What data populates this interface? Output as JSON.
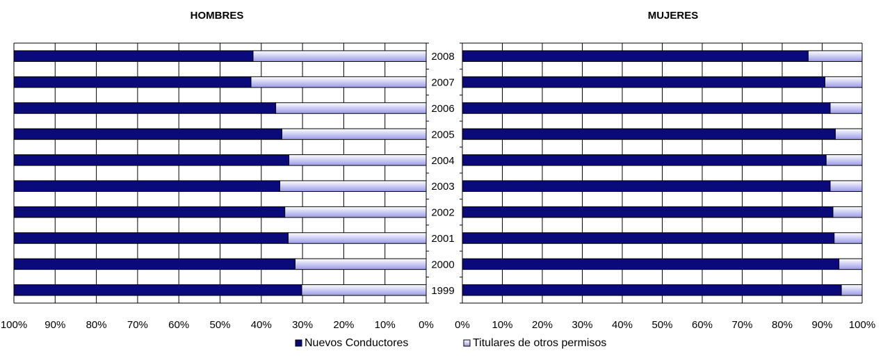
{
  "legend": {
    "series_a": "Nuevos Conductores",
    "series_b": "Titulares de otros permisos"
  },
  "colors": {
    "series_a": "#0a0a7a",
    "series_b_light": "#ffffff",
    "series_b_dark": "#9a9ae8",
    "grid": "#000000"
  },
  "chart_data": [
    {
      "type": "bar",
      "orientation": "horizontal",
      "stacked": "percent",
      "title": "HOMBRES",
      "direction": "reversed",
      "categories": [
        "2008",
        "2007",
        "2006",
        "2005",
        "2004",
        "2003",
        "2002",
        "2001",
        "2000",
        "1999"
      ],
      "series": [
        {
          "name": "Titulares de otros permisos",
          "values": [
            42,
            42.5,
            36.5,
            35,
            33.3,
            35.5,
            34.3,
            33.5,
            31.8,
            30.2
          ]
        },
        {
          "name": "Nuevos Conductores",
          "values": [
            58,
            57.5,
            63.5,
            65,
            66.7,
            64.5,
            65.7,
            66.5,
            68.2,
            69.8
          ]
        }
      ],
      "xlim": [
        0,
        100
      ],
      "xticks": [
        "0%",
        "10%",
        "20%",
        "30%",
        "40%",
        "50%",
        "60%",
        "70%",
        "80%",
        "90%",
        "100%"
      ],
      "grid": true
    },
    {
      "type": "bar",
      "orientation": "horizontal",
      "stacked": "percent",
      "title": "MUJERES",
      "direction": "normal",
      "categories": [
        "2008",
        "2007",
        "2006",
        "2005",
        "2004",
        "2003",
        "2002",
        "2001",
        "2000",
        "1999"
      ],
      "series": [
        {
          "name": "Nuevos Conductores",
          "values": [
            86.5,
            90.7,
            92,
            93.3,
            91,
            92,
            92.7,
            93,
            94.2,
            94.8
          ]
        },
        {
          "name": "Titulares de otros permisos",
          "values": [
            13.5,
            9.3,
            8,
            6.7,
            9,
            8,
            7.3,
            7,
            5.8,
            5.2
          ]
        }
      ],
      "xlim": [
        0,
        100
      ],
      "xticks": [
        "0%",
        "10%",
        "20%",
        "30%",
        "40%",
        "50%",
        "60%",
        "70%",
        "80%",
        "90%",
        "100%"
      ],
      "grid": true
    }
  ]
}
